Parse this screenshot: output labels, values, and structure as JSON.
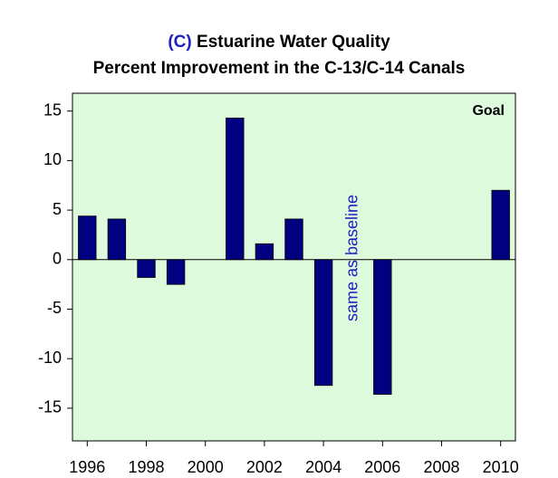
{
  "chart_data": {
    "type": "bar",
    "panel_label": "(C)",
    "title": "Estuarine Water Quality",
    "subtitle": "Percent Improvement in the C-13/C-14 Canals",
    "categories": [
      "1996",
      null,
      "1998",
      null,
      "2000",
      null,
      "2002",
      null,
      "2004",
      null,
      "2006",
      null,
      "2008",
      null,
      "2010"
    ],
    "values": [
      4.4,
      4.1,
      -1.8,
      -2.5,
      null,
      14.3,
      1.6,
      4.1,
      -12.7,
      null,
      -13.6,
      null,
      null,
      null,
      7.0
    ],
    "color": "#000080",
    "plot_background": "#ddfadd",
    "ylim": [
      -18.3,
      16.8
    ],
    "yticks": [
      -15,
      -10,
      -5,
      0,
      5,
      10,
      15
    ],
    "annotations": [
      "Goal",
      "same as baseline"
    ]
  }
}
